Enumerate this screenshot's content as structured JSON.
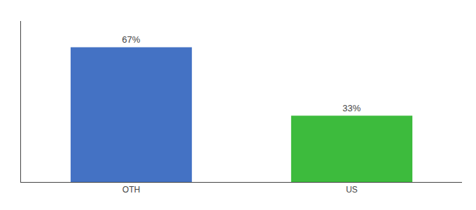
{
  "chart_data": {
    "type": "bar",
    "categories": [
      "OTH",
      "US"
    ],
    "values": [
      67,
      33
    ],
    "value_labels": [
      "67%",
      "33%"
    ],
    "colors": [
      "#4472c4",
      "#3dbb3d"
    ],
    "ylim": [
      0,
      80
    ],
    "data_labels": true,
    "tick_labels": "x",
    "grid": false
  }
}
